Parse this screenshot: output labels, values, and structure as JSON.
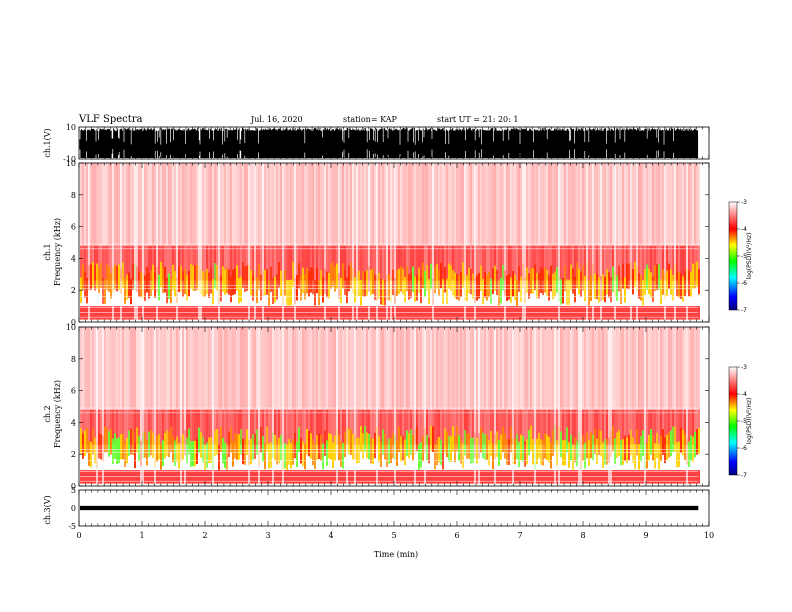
{
  "header": {
    "title": "VLF Spectra",
    "date": "Jul. 16, 2020",
    "station": "station= KAP",
    "start": "start UT = 21: 20: 1"
  },
  "chart_data": [
    {
      "type": "line",
      "name": "ch1-waveform",
      "ylabel": "ch.1(V)",
      "ylim": [
        -10,
        10
      ],
      "ytick_labels": [
        "10",
        "-10"
      ],
      "xlim": [
        0,
        10
      ]
    },
    {
      "type": "heatmap",
      "name": "ch1-spectrogram",
      "ylabel": "ch.1\nFrequency (kHz)",
      "ylim": [
        0,
        10
      ],
      "ytick_labels": [
        "0",
        "2",
        "4",
        "6",
        "8",
        "10"
      ],
      "xlim": [
        0,
        9.83
      ],
      "colorbar": {
        "label": "log(PSD)(V²/Hz)",
        "range": [
          -7,
          -3
        ],
        "tick_labels": [
          "-3",
          "-4",
          "-5",
          "-6",
          "-7"
        ]
      }
    },
    {
      "type": "heatmap",
      "name": "ch2-spectrogram",
      "ylabel": "ch.2\nFrequency (kHz)",
      "ylim": [
        0,
        10
      ],
      "ytick_labels": [
        "0",
        "2",
        "4",
        "6",
        "8",
        "10"
      ],
      "xlim": [
        0,
        9.83
      ],
      "colorbar": {
        "label": "log(PSD)(V²/Hz)",
        "range": [
          -7,
          -3
        ],
        "tick_labels": [
          "-3",
          "-4",
          "-5",
          "-6",
          "-7"
        ]
      }
    },
    {
      "type": "line",
      "name": "ch3-waveform",
      "ylabel": "ch.3(V)",
      "ylim": [
        -5,
        5
      ],
      "ytick_labels": [
        "5",
        "0",
        "-5"
      ],
      "xlim": [
        0,
        10
      ]
    }
  ],
  "xaxis": {
    "label": "Time (min)",
    "tick_labels": [
      "0",
      "1",
      "2",
      "3",
      "4",
      "5",
      "6",
      "7",
      "8",
      "9",
      "10"
    ],
    "range": [
      0,
      10
    ]
  },
  "colors": {
    "colormap": [
      "#000080",
      "#0000ff",
      "#00ffff",
      "#00ff00",
      "#ffff00",
      "#ff0000",
      "#ffffff"
    ],
    "waveform": "#000000"
  }
}
